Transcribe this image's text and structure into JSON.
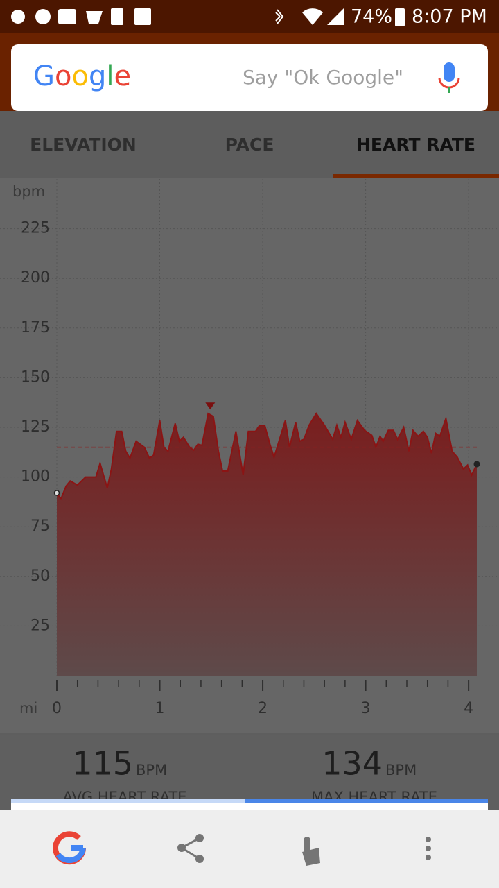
{
  "status_bar": {
    "battery": "74%",
    "time": "8:07 PM"
  },
  "search": {
    "logo": "Google",
    "hint": "Say \"Ok Google\""
  },
  "tabs": [
    "ELEVATION",
    "PACE",
    "HEART RATE"
  ],
  "selected_tab": 2,
  "chart_data": {
    "type": "area",
    "y_label": "bpm",
    "x_label": "mi",
    "xlim": [
      0,
      4.08
    ],
    "ylim": [
      0,
      250
    ],
    "xticks": [
      0,
      1,
      2,
      3,
      4
    ],
    "yticks": [
      25,
      50,
      75,
      100,
      125,
      150,
      175,
      200,
      225
    ],
    "grid": true,
    "color": "#8b1414",
    "series": [
      {
        "x": [
          0,
          0.04,
          0.09,
          0.13,
          0.2,
          0.28,
          0.38,
          0.42,
          0.49,
          0.53,
          0.58,
          0.63,
          0.67,
          0.71,
          0.77,
          0.85,
          0.9,
          0.94,
          1.0,
          1.04,
          1.08,
          1.15,
          1.19,
          1.23,
          1.29,
          1.33,
          1.37,
          1.41,
          1.47,
          1.52,
          1.57,
          1.61,
          1.66,
          1.74,
          1.81,
          1.86,
          1.93,
          1.97,
          2.02,
          2.07,
          2.11,
          2.22,
          2.26,
          2.32,
          2.36,
          2.4,
          2.45,
          2.52,
          2.6,
          2.68,
          2.72,
          2.76,
          2.8,
          2.86,
          2.92,
          2.99,
          3.06,
          3.1,
          3.14,
          3.17,
          3.22,
          3.27,
          3.31,
          3.37,
          3.42,
          3.46,
          3.51,
          3.56,
          3.6,
          3.64,
          3.68,
          3.72,
          3.78,
          3.84,
          3.89,
          3.95,
          3.99,
          4.03,
          4.08
        ],
        "values": [
          92,
          89,
          95.5,
          98,
          96,
          100,
          100,
          107,
          94.5,
          104,
          123,
          123,
          113,
          109.5,
          118,
          115,
          109.5,
          111,
          128.5,
          115,
          113,
          127,
          118,
          120,
          115,
          113.5,
          116.5,
          116,
          132,
          130.5,
          113,
          103,
          103,
          123,
          101,
          123,
          123,
          126,
          126,
          116.5,
          110,
          128.5,
          115,
          127.5,
          118,
          119,
          126,
          132,
          126,
          119,
          126,
          120,
          127.5,
          119,
          128.5,
          123.5,
          121,
          115,
          120.5,
          118,
          123.5,
          123.5,
          119,
          125,
          113,
          123.5,
          120.5,
          123,
          120,
          112,
          122,
          120.5,
          129.5,
          113,
          110,
          104,
          106,
          101,
          106.5
        ]
      }
    ],
    "average": 115,
    "max": {
      "x": 1.49,
      "value": 134
    }
  },
  "stats": [
    {
      "value": "115",
      "unit": "BPM",
      "label": "AVG HEART RATE"
    },
    {
      "value": "134",
      "unit": "BPM",
      "label": "MAX HEART RATE"
    }
  ]
}
